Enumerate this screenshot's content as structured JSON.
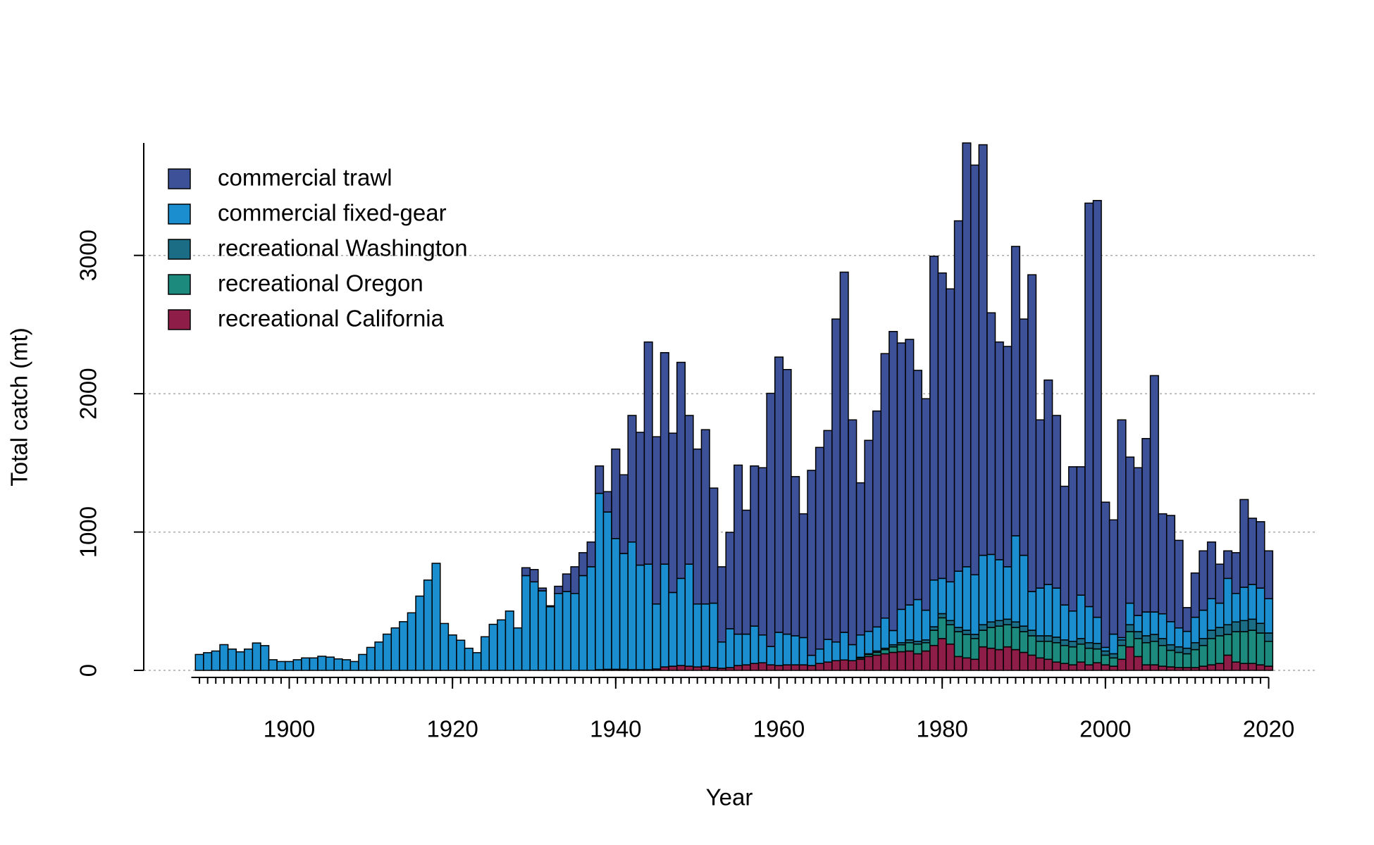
{
  "chart_data": {
    "type": "stacked_bar",
    "x_label": "Year",
    "y_label": "Total catch (mt)",
    "x": [
      1889,
      1890,
      1891,
      1892,
      1893,
      1894,
      1895,
      1896,
      1897,
      1898,
      1899,
      1900,
      1901,
      1902,
      1903,
      1904,
      1905,
      1906,
      1907,
      1908,
      1909,
      1910,
      1911,
      1912,
      1913,
      1914,
      1915,
      1916,
      1917,
      1918,
      1919,
      1920,
      1921,
      1922,
      1923,
      1924,
      1925,
      1926,
      1927,
      1928,
      1929,
      1930,
      1931,
      1932,
      1933,
      1934,
      1935,
      1936,
      1937,
      1938,
      1939,
      1940,
      1941,
      1942,
      1943,
      1944,
      1945,
      1946,
      1947,
      1948,
      1949,
      1950,
      1951,
      1952,
      1953,
      1954,
      1955,
      1956,
      1957,
      1958,
      1959,
      1960,
      1961,
      1962,
      1963,
      1964,
      1965,
      1966,
      1967,
      1968,
      1969,
      1970,
      1971,
      1972,
      1973,
      1974,
      1975,
      1976,
      1977,
      1978,
      1979,
      1980,
      1981,
      1982,
      1983,
      1984,
      1985,
      1986,
      1987,
      1988,
      1989,
      1990,
      1991,
      1992,
      1993,
      1994,
      1995,
      1996,
      1997,
      1998,
      1999,
      2000,
      2001,
      2002,
      2003,
      2004,
      2005,
      2006,
      2007,
      2008,
      2009,
      2010,
      2011,
      2012,
      2013,
      2014,
      2015,
      2016,
      2017,
      2018,
      2019,
      2020
    ],
    "series": [
      {
        "name": "commercial trawl",
        "color": "#3d5199",
        "values": [
          0,
          0,
          0,
          0,
          0,
          0,
          0,
          0,
          0,
          0,
          0,
          0,
          0,
          0,
          0,
          0,
          0,
          0,
          0,
          0,
          0,
          0,
          0,
          0,
          0,
          0,
          0,
          0,
          0,
          0,
          0,
          0,
          0,
          0,
          0,
          0,
          0,
          0,
          0,
          0,
          57,
          89,
          20,
          7,
          52,
          127,
          193,
          166,
          179,
          198,
          147,
          647,
          569,
          915,
          960,
          1606,
          1209,
          1529,
          1152,
          1562,
          1075,
          1120,
          1260,
          832,
          544,
          697,
          1222,
          896,
          1158,
          1209,
          1830,
          1990,
          1913,
          1151,
          895,
          1337,
          1458,
          1510,
          2335,
          2604,
          1625,
          1100,
          1381,
          1561,
          1912,
          2162,
          1926,
          1920,
          1657,
          1529,
          2341,
          2208,
          2118,
          2533,
          3064,
          2962,
          2968,
          1747,
          1574,
          1593,
          2092,
          1708,
          2290,
          1216,
          1478,
          1248,
          858,
          1043,
          928,
          2917,
          3013,
          1050,
          826,
          1574,
          1056,
          1068,
          1254,
          1709,
          723,
          768,
          633,
          172,
          320,
          429,
          410,
          282,
          199,
          295,
          634,
          479,
          480,
          346
        ]
      },
      {
        "name": "commercial fixed-gear",
        "color": "#1a8ecf",
        "values": [
          115,
          128,
          140,
          186,
          154,
          134,
          154,
          198,
          179,
          77,
          64,
          64,
          77,
          90,
          90,
          102,
          96,
          83,
          77,
          64,
          115,
          166,
          205,
          262,
          307,
          352,
          416,
          537,
          653,
          774,
          339,
          256,
          218,
          160,
          128,
          243,
          333,
          365,
          429,
          307,
          685,
          640,
          575,
          460,
          556,
          570,
          556,
          685,
          749,
          1275,
          1137,
          945,
          837,
          923,
          756,
          763,
          470,
          743,
          533,
          630,
          738,
          455,
          450,
          466,
          190,
          281,
          227,
          222,
          270,
          201,
          133,
          240,
          222,
          210,
          197,
          74,
          104,
          164,
          135,
          200,
          116,
          161,
          162,
          174,
          218,
          103,
          241,
          253,
          302,
          215,
          338,
          255,
          280,
          407,
          459,
          431,
          502,
          488,
          440,
          379,
          623,
          512,
          280,
          345,
          371,
          355,
          253,
          219,
          314,
          261,
          189,
          26,
          142,
          17,
          156,
          117,
          172,
          162,
          179,
          167,
          137,
          122,
          184,
          205,
          228,
          176,
          335,
          206,
          241,
          251,
          255,
          248
        ]
      },
      {
        "name": "recreational Washington",
        "color": "#1b6d85",
        "values": [
          0,
          0,
          0,
          0,
          0,
          0,
          0,
          0,
          0,
          0,
          0,
          0,
          0,
          0,
          0,
          0,
          0,
          0,
          0,
          0,
          0,
          0,
          0,
          0,
          0,
          0,
          0,
          0,
          0,
          0,
          0,
          0,
          0,
          0,
          0,
          0,
          0,
          0,
          0,
          0,
          0,
          0,
          0,
          0,
          0,
          0,
          0,
          0,
          0,
          0,
          0,
          0,
          0,
          0,
          0,
          0,
          0,
          0,
          0,
          0,
          0,
          0,
          0,
          0,
          0,
          0,
          0,
          0,
          0,
          0,
          0,
          0,
          0,
          0,
          0,
          0,
          0,
          0,
          0,
          0,
          0,
          5,
          5,
          10,
          10,
          15,
          15,
          20,
          20,
          20,
          25,
          30,
          30,
          30,
          30,
          30,
          40,
          40,
          40,
          40,
          40,
          40,
          40,
          40,
          40,
          40,
          40,
          40,
          40,
          40,
          40,
          30,
          30,
          40,
          50,
          50,
          50,
          50,
          50,
          40,
          40,
          40,
          50,
          50,
          60,
          60,
          70,
          70,
          80,
          80,
          70,
          60
        ]
      },
      {
        "name": "recreational Oregon",
        "color": "#1d8a7e",
        "values": [
          0,
          0,
          0,
          0,
          0,
          0,
          0,
          0,
          0,
          0,
          0,
          0,
          0,
          0,
          0,
          0,
          0,
          0,
          0,
          0,
          0,
          0,
          0,
          0,
          0,
          0,
          0,
          0,
          0,
          0,
          0,
          0,
          0,
          0,
          0,
          0,
          0,
          0,
          0,
          0,
          0,
          0,
          0,
          0,
          0,
          0,
          0,
          0,
          0,
          0,
          0,
          0,
          0,
          0,
          0,
          0,
          0,
          0,
          0,
          0,
          0,
          0,
          0,
          0,
          0,
          0,
          0,
          0,
          0,
          0,
          0,
          0,
          0,
          0,
          0,
          0,
          0,
          0,
          0,
          0,
          0,
          10,
          15,
          20,
          30,
          40,
          50,
          60,
          70,
          60,
          110,
          150,
          140,
          180,
          170,
          150,
          120,
          150,
          170,
          160,
          160,
          150,
          140,
          120,
          130,
          140,
          130,
          130,
          130,
          120,
          100,
          70,
          60,
          100,
          110,
          130,
          160,
          170,
          150,
          120,
          110,
          100,
          130,
          150,
          190,
          200,
          150,
          220,
          230,
          240,
          230,
          180
        ]
      },
      {
        "name": "recreational California",
        "color": "#8e1e47",
        "values": [
          0,
          0,
          0,
          0,
          0,
          0,
          0,
          0,
          0,
          0,
          0,
          0,
          0,
          0,
          0,
          0,
          0,
          0,
          0,
          0,
          0,
          0,
          0,
          0,
          0,
          0,
          0,
          0,
          0,
          0,
          0,
          0,
          0,
          0,
          0,
          0,
          0,
          0,
          0,
          0,
          0,
          0,
          0,
          0,
          0,
          0,
          0,
          0,
          0,
          5,
          8,
          8,
          8,
          5,
          5,
          5,
          10,
          25,
          30,
          35,
          30,
          25,
          30,
          20,
          15,
          20,
          35,
          40,
          50,
          55,
          40,
          35,
          40,
          40,
          40,
          35,
          50,
          60,
          70,
          75,
          70,
          80,
          100,
          110,
          120,
          130,
          135,
          140,
          120,
          140,
          180,
          230,
          190,
          100,
          90,
          80,
          170,
          160,
          150,
          170,
          150,
          130,
          110,
          90,
          80,
          60,
          50,
          40,
          60,
          40,
          55,
          40,
          30,
          80,
          170,
          100,
          40,
          40,
          30,
          25,
          20,
          20,
          20,
          30,
          40,
          50,
          110,
          60,
          50,
          50,
          40,
          30
        ]
      }
    ],
    "xlim": [
      1882,
      2026
    ],
    "xticks": [
      1900,
      1920,
      1940,
      1960,
      1980,
      2000,
      2020
    ],
    "ylim": [
      0,
      3813
    ],
    "yticks": [
      0,
      1000,
      2000,
      3000
    ],
    "grid": true,
    "legend": "top-left"
  }
}
